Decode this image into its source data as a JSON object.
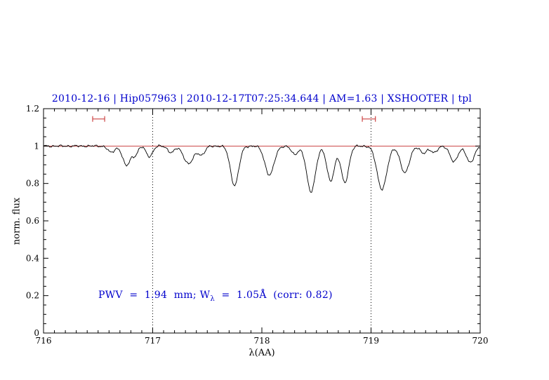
{
  "title": "2010-12-16 | Hip057963 | 2010-12-17T07:25:34.644 | AM=1.63 | XSHOOTER | tpl",
  "annotation": {
    "prefix": "PWV  =  1.94  mm; W",
    "sub": "λ",
    "suffix": "  =  1.05Å  (corr: 0.82)"
  },
  "colors": {
    "title": "#0000cc",
    "annotation": "#0000cc",
    "spectrum": "#000000",
    "continuum_line": "#cc4444",
    "interval_marker": "#cc4444",
    "axis": "#000000",
    "dotted_line": "#000000"
  },
  "chart_data": {
    "type": "line",
    "title": "2010-12-16 | Hip057963 | 2010-12-17T07:25:34.644 | AM=1.63 | XSHOOTER | tpl",
    "xlabel": "λ(AA)",
    "ylabel": "norm. flux",
    "xlim": [
      716,
      720
    ],
    "ylim": [
      0,
      1.2
    ],
    "x_ticks": [
      716,
      717,
      718,
      719,
      720
    ],
    "x_tick_labels": [
      "716",
      "717",
      "718",
      "719",
      "720"
    ],
    "x_minor_step": 0.1,
    "y_ticks": [
      0,
      0.2,
      0.4,
      0.6,
      0.8,
      1,
      1.2
    ],
    "y_tick_labels": [
      "0",
      "0.2",
      "0.4",
      "0.6",
      "0.8",
      "1",
      "1.2"
    ],
    "y_minor_step": 0.05,
    "grid": false,
    "reference_line_y": 1.0,
    "dotted_vlines": [
      717,
      719
    ],
    "interval_markers": [
      {
        "x1": 716.45,
        "x2": 716.56,
        "y": 1.145
      },
      {
        "x1": 718.92,
        "x2": 719.04,
        "y": 1.145
      }
    ],
    "continuum": 1.0,
    "noise_amplitude": 0.006,
    "sample_step": 0.008,
    "absorption_lines": [
      {
        "center": 716.62,
        "depth": 0.035,
        "sigma": 0.03
      },
      {
        "center": 716.76,
        "depth": 0.105,
        "sigma": 0.035
      },
      {
        "center": 716.84,
        "depth": 0.045,
        "sigma": 0.025
      },
      {
        "center": 716.97,
        "depth": 0.055,
        "sigma": 0.03
      },
      {
        "center": 717.17,
        "depth": 0.035,
        "sigma": 0.03
      },
      {
        "center": 717.33,
        "depth": 0.095,
        "sigma": 0.045
      },
      {
        "center": 717.45,
        "depth": 0.045,
        "sigma": 0.03
      },
      {
        "center": 717.75,
        "depth": 0.21,
        "sigma": 0.038
      },
      {
        "center": 718.07,
        "depth": 0.155,
        "sigma": 0.042
      },
      {
        "center": 718.3,
        "depth": 0.045,
        "sigma": 0.03
      },
      {
        "center": 718.45,
        "depth": 0.245,
        "sigma": 0.04
      },
      {
        "center": 718.63,
        "depth": 0.185,
        "sigma": 0.035
      },
      {
        "center": 718.76,
        "depth": 0.195,
        "sigma": 0.035
      },
      {
        "center": 719.1,
        "depth": 0.23,
        "sigma": 0.045
      },
      {
        "center": 719.31,
        "depth": 0.145,
        "sigma": 0.04
      },
      {
        "center": 719.48,
        "depth": 0.04,
        "sigma": 0.03
      },
      {
        "center": 719.58,
        "depth": 0.035,
        "sigma": 0.03
      },
      {
        "center": 719.76,
        "depth": 0.085,
        "sigma": 0.035
      },
      {
        "center": 719.91,
        "depth": 0.09,
        "sigma": 0.035
      }
    ]
  }
}
